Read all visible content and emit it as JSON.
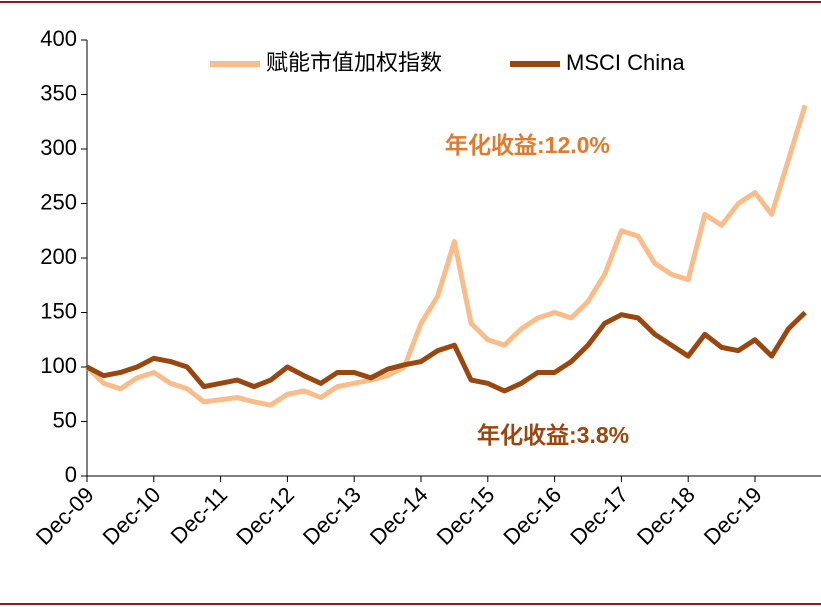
{
  "chart_data": {
    "type": "line",
    "categories": [
      "Dec-09",
      null,
      null,
      null,
      "Dec-10",
      null,
      null,
      null,
      "Dec-11",
      null,
      null,
      null,
      "Dec-12",
      null,
      null,
      null,
      "Dec-13",
      null,
      null,
      null,
      "Dec-14",
      null,
      null,
      null,
      "Dec-15",
      null,
      null,
      null,
      "Dec-16",
      null,
      null,
      null,
      "Dec-17",
      null,
      null,
      null,
      "Dec-18",
      null,
      null,
      null,
      "Dec-19",
      null,
      null,
      null
    ],
    "series": [
      {
        "name": "赋能市值加权指数",
        "color": "#f8bd8a",
        "values": [
          100,
          85,
          80,
          90,
          95,
          85,
          80,
          68,
          70,
          72,
          68,
          65,
          75,
          78,
          72,
          82,
          85,
          88,
          92,
          100,
          140,
          165,
          215,
          140,
          125,
          120,
          135,
          145,
          150,
          145,
          160,
          185,
          225,
          220,
          195,
          185,
          180,
          240,
          230,
          250,
          260,
          240,
          290,
          340
        ]
      },
      {
        "name": "MSCI China",
        "color": "#994710",
        "values": [
          100,
          92,
          95,
          100,
          108,
          105,
          100,
          82,
          85,
          88,
          82,
          88,
          100,
          92,
          85,
          95,
          95,
          90,
          98,
          102,
          105,
          115,
          120,
          88,
          85,
          78,
          85,
          95,
          95,
          105,
          120,
          140,
          148,
          145,
          130,
          120,
          110,
          130,
          118,
          115,
          125,
          110,
          135,
          150
        ]
      }
    ],
    "annotations": [
      {
        "text": "年化收益:12.0%",
        "color": "#e07a2e"
      },
      {
        "text": "年化收益:3.8%",
        "color": "#994710"
      }
    ],
    "ylim": [
      0,
      400
    ],
    "yticks": [
      0,
      50,
      100,
      150,
      200,
      250,
      300,
      350,
      400
    ]
  }
}
